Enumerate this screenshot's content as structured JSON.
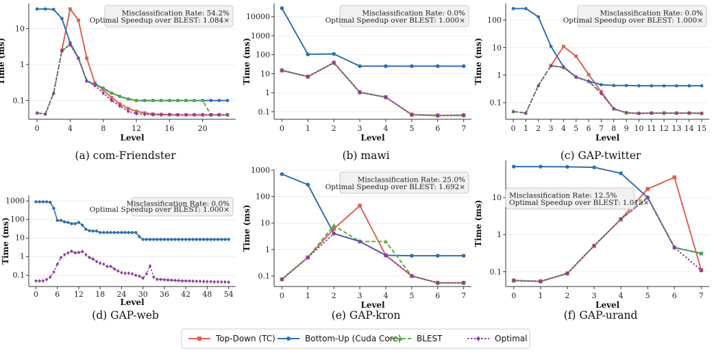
{
  "figure": {
    "legend": [
      {
        "label": "Top-Down (TC)",
        "color": "#e06050",
        "marker": "square",
        "dash": "solid"
      },
      {
        "label": "Bottom-Up (Cuda Core)",
        "color": "#2e6fb0",
        "marker": "circle",
        "dash": "solid"
      },
      {
        "label": "BLEST",
        "color": "#55ad3d",
        "marker": "triangle",
        "dash": "dashed"
      },
      {
        "label": "Optimal",
        "color": "#8e3d9e",
        "marker": "diamond",
        "dash": "dotted"
      }
    ]
  },
  "chart_data": [
    {
      "type": "line",
      "caption": "(a) com-Friendster",
      "xlabel": "Level",
      "ylabel": "Time (ms)",
      "yscale": "log",
      "xlim": [
        -1,
        24
      ],
      "ylim": [
        0.03,
        50
      ],
      "xticks": [
        0,
        4,
        8,
        12,
        16,
        20
      ],
      "yticks": [
        0.1,
        1,
        10
      ],
      "annotation": [
        "Misclassification Rate: 54.2%",
        "Optimal Speedup over BLEST: 1.084×"
      ],
      "x": [
        0,
        1,
        2,
        3,
        4,
        5,
        6,
        7,
        8,
        9,
        10,
        11,
        12,
        13,
        14,
        15,
        16,
        17,
        18,
        19,
        20,
        21,
        22,
        23
      ],
      "series": [
        {
          "name": "Top-Down (TC)",
          "values": [
            null,
            null,
            null,
            2.5,
            35,
            17,
            1.5,
            0.3,
            0.2,
            0.12,
            0.08,
            0.06,
            0.05,
            0.045,
            0.042,
            0.041,
            0.04,
            0.04,
            0.04,
            0.04,
            0.04,
            0.04,
            0.04,
            0.04
          ]
        },
        {
          "name": "Bottom-Up (Cuda Core)",
          "values": [
            35,
            35,
            34,
            19,
            4,
            1.5,
            0.35,
            0.28,
            0.22,
            0.16,
            0.13,
            0.11,
            0.1,
            0.1,
            0.1,
            0.1,
            0.1,
            0.1,
            0.1,
            0.1,
            0.1,
            0.1,
            0.1,
            0.1
          ]
        },
        {
          "name": "BLEST",
          "values": [
            0.045,
            0.042,
            0.16,
            2.4,
            3.6,
            1.5,
            0.35,
            0.27,
            0.22,
            0.16,
            0.13,
            0.11,
            0.1,
            0.1,
            0.1,
            0.1,
            0.1,
            0.1,
            0.1,
            0.1,
            0.1,
            0.04,
            0.04,
            0.04
          ]
        },
        {
          "name": "Optimal",
          "values": [
            0.045,
            0.042,
            0.16,
            2.4,
            3.6,
            1.5,
            0.35,
            0.26,
            0.16,
            0.1,
            0.07,
            0.05,
            0.043,
            0.041,
            0.04,
            0.04,
            0.041,
            0.04,
            0.04,
            0.04,
            0.04,
            0.04,
            0.04,
            0.04
          ]
        }
      ]
    },
    {
      "type": "line",
      "caption": "(b) mawi",
      "xlabel": "Level",
      "ylabel": "Time (ms)",
      "yscale": "log",
      "xlim": [
        -0.3,
        7.3
      ],
      "ylim": [
        0.04,
        50000
      ],
      "xticks": [
        0,
        1,
        2,
        3,
        4,
        5,
        6,
        7
      ],
      "yticks": [
        0.1,
        1,
        10,
        100,
        1000,
        10000
      ],
      "annotation": [
        "Misclassification Rate: 0.0%",
        "Optimal Speedup over BLEST: 1.000×"
      ],
      "x": [
        0,
        1,
        2,
        3,
        4,
        5,
        6,
        7
      ],
      "series": [
        {
          "name": "Top-Down (TC)",
          "values": [
            15,
            7,
            38,
            1.05,
            0.58,
            0.07,
            0.063,
            0.065
          ]
        },
        {
          "name": "Bottom-Up (Cuda Core)",
          "values": [
            28000,
            105,
            110,
            25,
            25,
            25,
            25,
            25
          ]
        },
        {
          "name": "BLEST",
          "values": [
            15,
            7,
            38,
            1.05,
            0.58,
            0.07,
            0.063,
            0.065
          ]
        },
        {
          "name": "Optimal",
          "values": [
            15,
            7,
            38,
            1.05,
            0.58,
            0.07,
            0.063,
            0.065
          ]
        }
      ]
    },
    {
      "type": "line",
      "caption": "(c) GAP-twitter",
      "xlabel": "Level",
      "ylabel": "Time (ms)",
      "yscale": "log",
      "xlim": [
        -0.6,
        15.6
      ],
      "ylim": [
        0.025,
        400
      ],
      "xticks": [
        0,
        1,
        2,
        3,
        4,
        5,
        6,
        7,
        8,
        9,
        10,
        11,
        12,
        13,
        14,
        15
      ],
      "yticks": [
        0.1,
        1,
        10,
        100
      ],
      "annotation": [
        "Misclassification Rate: 0.0%",
        "Optimal Speedup over BLEST: 1.000×"
      ],
      "x": [
        0,
        1,
        2,
        3,
        4,
        5,
        6,
        7,
        8,
        9,
        10,
        11,
        12,
        13,
        14,
        15
      ],
      "series": [
        {
          "name": "Top-Down (TC)",
          "values": [
            null,
            null,
            null,
            2.2,
            11,
            4.8,
            1.05,
            0.25,
            0.06,
            0.043,
            0.041,
            0.042,
            0.042,
            0.042,
            0.042,
            0.041
          ]
        },
        {
          "name": "Bottom-Up (Cuda Core)",
          "values": [
            260,
            260,
            130,
            11,
            2,
            0.85,
            0.6,
            0.45,
            0.42,
            0.42,
            0.41,
            0.41,
            0.41,
            0.41,
            0.41,
            0.41
          ]
        },
        {
          "name": "BLEST",
          "values": [
            0.048,
            0.042,
            0.42,
            2.2,
            1.9,
            0.85,
            0.6,
            0.22,
            0.06,
            0.043,
            0.041,
            0.042,
            0.042,
            0.042,
            0.042,
            0.041
          ]
        },
        {
          "name": "Optimal",
          "values": [
            0.048,
            0.042,
            0.42,
            2.2,
            1.9,
            0.85,
            0.6,
            0.22,
            0.06,
            0.043,
            0.041,
            0.042,
            0.042,
            0.042,
            0.042,
            0.041
          ]
        }
      ]
    },
    {
      "type": "line",
      "caption": "(d) GAP-web",
      "xlabel": "Level",
      "ylabel": "Time (ms)",
      "yscale": "log",
      "xlim": [
        -2,
        56
      ],
      "ylim": [
        0.025,
        2000
      ],
      "xticks": [
        0,
        6,
        12,
        18,
        24,
        30,
        36,
        42,
        48,
        54
      ],
      "yticks": [
        0.1,
        1,
        10,
        100,
        1000
      ],
      "annotation": [
        "Misclassification Rate: 0.0%",
        "Optimal Speedup over BLEST: 1.000×"
      ],
      "x": [
        0,
        1,
        2,
        3,
        4,
        5,
        6,
        7,
        8,
        9,
        10,
        11,
        12,
        13,
        14,
        15,
        16,
        17,
        18,
        19,
        20,
        21,
        22,
        23,
        24,
        25,
        26,
        27,
        28,
        29,
        30,
        31,
        32,
        33,
        34,
        35,
        36,
        37,
        38,
        39,
        40,
        41,
        42,
        43,
        44,
        45,
        46,
        47,
        48,
        49,
        50,
        51,
        52,
        53,
        54
      ],
      "series": [
        {
          "name": "Bottom-Up (Cuda Core)",
          "values": [
            900,
            900,
            900,
            900,
            850,
            400,
            90,
            90,
            75,
            70,
            60,
            60,
            70,
            50,
            30,
            25,
            24,
            24,
            20,
            20,
            20,
            20,
            20,
            20,
            20,
            20,
            20,
            20,
            20,
            12,
            8.5,
            8.5,
            8.5,
            8.5,
            8.5,
            8.5,
            8.5,
            8.5,
            8.5,
            8.5,
            8.5,
            8.5,
            8.5,
            8.5,
            8.5,
            8.5,
            8.5,
            8.5,
            8.5,
            8.5,
            8.5,
            8.5,
            8.5,
            8.5,
            8.5
          ]
        },
        {
          "name": "Optimal",
          "values": [
            0.05,
            0.05,
            0.05,
            0.06,
            0.08,
            0.15,
            0.4,
            0.9,
            1.3,
            1.6,
            2,
            1.6,
            1.7,
            1.9,
            1.3,
            0.9,
            0.75,
            0.55,
            0.45,
            0.4,
            0.3,
            0.3,
            0.22,
            0.17,
            0.14,
            0.13,
            0.13,
            0.12,
            0.1,
            0.09,
            0.07,
            0.12,
            0.32,
            0.08,
            0.06,
            0.06,
            0.058,
            0.056,
            0.055,
            0.053,
            0.052,
            0.05,
            0.05,
            0.05,
            0.049,
            0.048,
            0.048,
            0.047,
            0.046,
            0.046,
            0.045,
            0.045,
            0.044,
            0.044,
            0.043
          ]
        }
      ]
    },
    {
      "type": "line",
      "caption": "(e) GAP-kron",
      "xlabel": "Level",
      "ylabel": "Time (ms)",
      "yscale": "log",
      "xlim": [
        -0.3,
        7.3
      ],
      "ylim": [
        0.04,
        1000
      ],
      "xticks": [
        0,
        1,
        2,
        3,
        4,
        5,
        6,
        7
      ],
      "yticks": [
        0.1,
        1,
        10,
        100,
        1000
      ],
      "annotation": [
        "Misclassification Rate: 25.0%",
        "Optimal Speedup over BLEST: 1.692×"
      ],
      "x": [
        0,
        1,
        2,
        3,
        4,
        5,
        6,
        7
      ],
      "series": [
        {
          "name": "Top-Down (TC)",
          "values": [
            0.075,
            0.5,
            6,
            45,
            0.6,
            0.1,
            0.055,
            0.055
          ]
        },
        {
          "name": "Bottom-Up (Cuda Core)",
          "values": [
            700,
            280,
            4,
            2,
            0.6,
            0.58,
            0.58,
            0.58
          ]
        },
        {
          "name": "BLEST",
          "values": [
            0.075,
            0.5,
            8,
            2,
            2,
            0.1,
            0.055,
            0.055
          ]
        },
        {
          "name": "Optimal",
          "values": [
            0.075,
            0.5,
            4,
            2,
            0.6,
            0.1,
            0.055,
            0.055
          ]
        }
      ]
    },
    {
      "type": "line",
      "caption": "(f) GAP-urand",
      "xlabel": "Level",
      "ylabel": "Time (ms)",
      "yscale": "log",
      "xlim": [
        -0.3,
        7.3
      ],
      "ylim": [
        0.04,
        100
      ],
      "xticks": [
        0,
        1,
        2,
        3,
        4,
        5,
        6,
        7
      ],
      "yticks": [
        0.1,
        1,
        10
      ],
      "annotation": [
        "Misclassification Rate: 12.5%",
        "Optimal Speedup over BLEST: 1.015×"
      ],
      "x": [
        0,
        1,
        2,
        3,
        4,
        5,
        6,
        7
      ],
      "series": [
        {
          "name": "Top-Down (TC)",
          "values": [
            0.058,
            0.055,
            0.09,
            0.5,
            2.6,
            17,
            35,
            0.11
          ]
        },
        {
          "name": "Bottom-Up (Cuda Core)",
          "values": [
            68,
            68,
            67,
            65,
            45,
            10,
            0.45,
            0.31
          ]
        },
        {
          "name": "BLEST",
          "values": [
            0.058,
            0.055,
            0.09,
            0.5,
            2.6,
            10,
            0.45,
            0.31
          ]
        },
        {
          "name": "Optimal",
          "values": [
            0.058,
            0.055,
            0.09,
            0.5,
            2.6,
            10,
            0.45,
            0.11
          ]
        }
      ]
    }
  ]
}
